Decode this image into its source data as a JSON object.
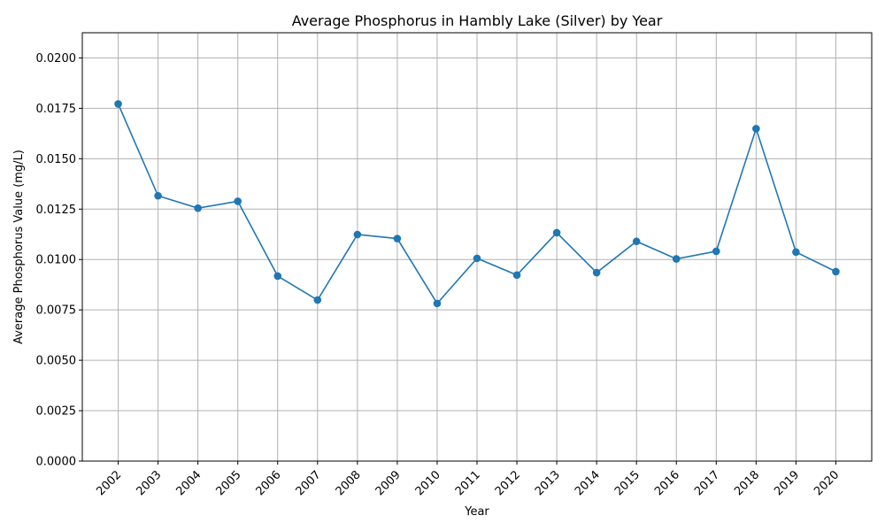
{
  "chart_data": {
    "type": "line",
    "title": "Average Phosphorus in Hambly Lake (Silver) by Year",
    "xlabel": "Year",
    "ylabel": "Average Phosphorus Value (mg/L)",
    "categories": [
      "2002",
      "2003",
      "2004",
      "2005",
      "2006",
      "2007",
      "2008",
      "2009",
      "2010",
      "2011",
      "2012",
      "2013",
      "2014",
      "2015",
      "2016",
      "2017",
      "2018",
      "2019",
      "2020"
    ],
    "series": [
      {
        "values": [
          0.01772,
          0.01316,
          0.01255,
          0.01289,
          0.00918,
          0.00799,
          0.01124,
          0.01104,
          0.00782,
          0.01006,
          0.00923,
          0.01133,
          0.00935,
          0.0109,
          0.01003,
          0.01041,
          0.01649,
          0.01037,
          0.0094
        ],
        "color": "#1f77b4",
        "marker": "circle"
      }
    ],
    "ylim": [
      0,
      0.02125
    ],
    "yticks": [
      "0.0000",
      "0.0025",
      "0.0050",
      "0.0075",
      "0.0100",
      "0.0125",
      "0.0150",
      "0.0175",
      "0.0200"
    ],
    "ytick_values": [
      0,
      0.0025,
      0.005,
      0.0075,
      0.01,
      0.0125,
      0.015,
      0.0175,
      0.02
    ],
    "grid": true,
    "legend": "none",
    "colors": {
      "line": "#1f77b4",
      "grid": "#b0b0b0",
      "axes": "#000000"
    }
  }
}
